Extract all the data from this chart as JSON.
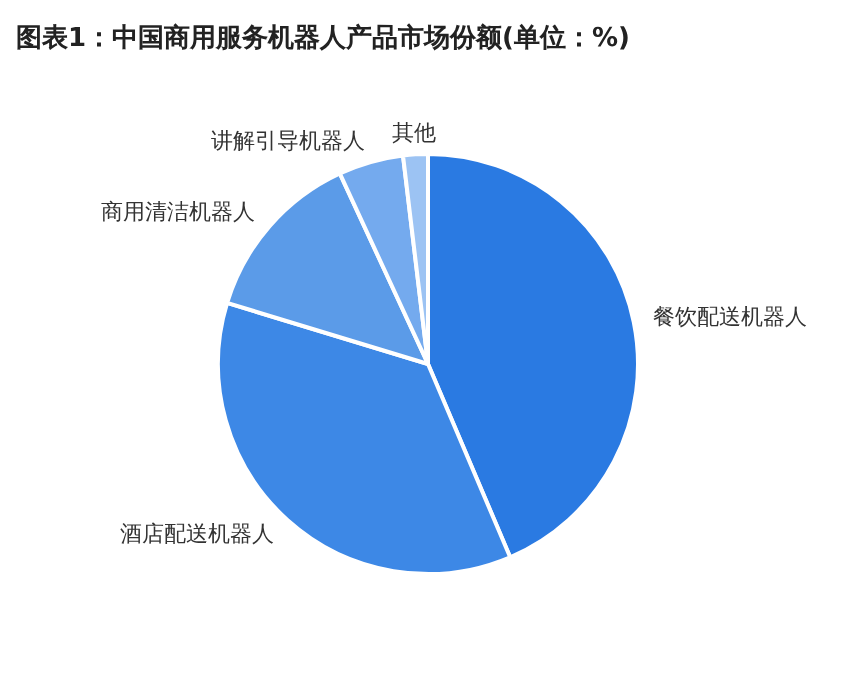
{
  "chart_data": {
    "type": "pie",
    "title": "图表1：中国商用服务机器人产品市场份额(单位：%)",
    "categories": [
      "餐饮配送机器人",
      "酒店配送机器人",
      "商用清洁机器人",
      "讲解引导机器人",
      "其他"
    ],
    "values": [
      43.6,
      36.1,
      13.4,
      5.0,
      1.9
    ],
    "colors": [
      "#2a7ae2",
      "#3d88e6",
      "#5b9be8",
      "#74aaee",
      "#9cc3f3"
    ],
    "legend": false
  }
}
